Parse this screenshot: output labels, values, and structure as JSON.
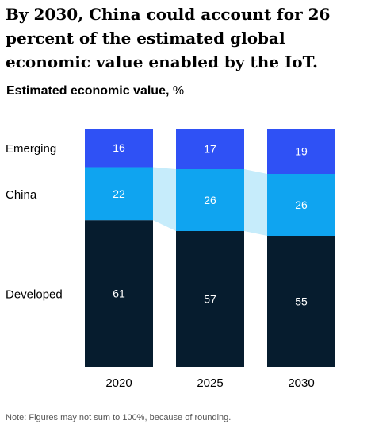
{
  "title": "By 2030, China could account for 26 percent of the estimated global economic value enabled by the IoT.",
  "subtitle": {
    "bold": "Estimated economic value,",
    "unit": " %"
  },
  "note": "Note: Figures may not sum to 100%, because of rounding.",
  "colors": {
    "emerging": "#2f51f5",
    "china": "#0fa4f0",
    "developed": "#061c2e",
    "connector": "#c6ecfb",
    "label_light": "#ffffff"
  },
  "chart_data": {
    "type": "bar",
    "stacked": true,
    "categories": [
      "2020",
      "2025",
      "2030"
    ],
    "series": [
      {
        "name": "Developed",
        "values": [
          61,
          57,
          55
        ]
      },
      {
        "name": "China",
        "values": [
          22,
          26,
          26
        ]
      },
      {
        "name": "Emerging",
        "values": [
          16,
          17,
          19
        ]
      }
    ],
    "ylim": [
      0,
      100
    ],
    "legend": "left",
    "grid": false,
    "data_labels": true
  }
}
